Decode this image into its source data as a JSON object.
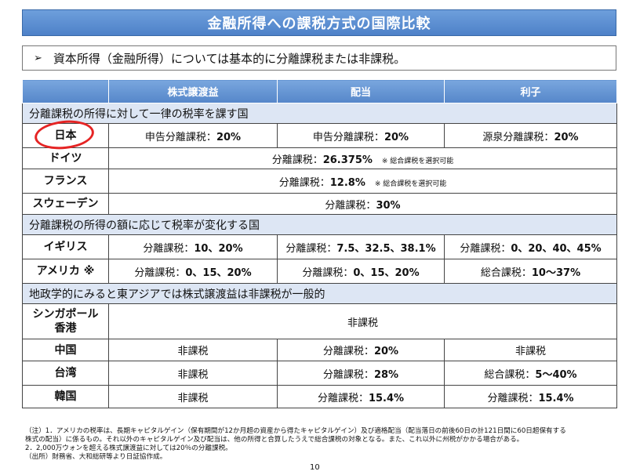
{
  "title": "金融所得への課税方式の国際比較",
  "summary": {
    "arrow": "➢",
    "text": "資本所得（金融所得）については基本的に分離課税または非課税。"
  },
  "table": {
    "headers": [
      "株式譲渡益",
      "配当",
      "利子"
    ],
    "sections": [
      {
        "label": "分離課税の所得に対して一律の税率を課す国",
        "rows": [
          {
            "country": "日本",
            "cells": [
              {
                "text": "申告分離課税：",
                "pct": "20%",
                "span": 1
              },
              {
                "text": "申告分離課税：",
                "pct": "20%",
                "span": 1
              },
              {
                "text": "源泉分離課税：",
                "pct": "20%",
                "span": 1
              }
            ]
          },
          {
            "country": "ドイツ",
            "cells": [
              {
                "text": "分離課税：",
                "pct": "26.375%",
                "note": "※ 総合課税を選択可能",
                "span": 3
              }
            ]
          },
          {
            "country": "フランス",
            "cells": [
              {
                "text": "分離課税：",
                "pct": "12.8%",
                "note": "※ 総合課税を選択可能",
                "span": 3
              }
            ]
          },
          {
            "country": "スウェーデン",
            "cells": [
              {
                "text": "分離課税：",
                "pct": "30%",
                "span": 3
              }
            ]
          }
        ]
      },
      {
        "label": "分離課税の所得の額に応じて税率が変化する国",
        "rows": [
          {
            "country": "イギリス",
            "cells": [
              {
                "text": "分離課税：",
                "pct": "10、20%",
                "span": 1
              },
              {
                "text": "分離課税：",
                "pct": "7.5、32.5、38.1%",
                "span": 1
              },
              {
                "text": "分離課税：",
                "pct": "0、20、40、45%",
                "span": 1
              }
            ]
          },
          {
            "country": "アメリカ ※",
            "cells": [
              {
                "text": "分離課税：",
                "pct": "0、15、20%",
                "span": 1
              },
              {
                "text": "分離課税：",
                "pct": "0、15、20%",
                "span": 1
              },
              {
                "text": "総合課税：",
                "pct": "10～37%",
                "span": 1
              }
            ]
          }
        ]
      },
      {
        "label": "地政学的にみると東アジアでは株式譲渡益は非課税が一般的",
        "rows": [
          {
            "country": "シンガポール\n香港",
            "cells": [
              {
                "text": "非課税",
                "pct": "",
                "span": 3
              }
            ]
          },
          {
            "country": "中国",
            "cells": [
              {
                "text": "非課税",
                "pct": "",
                "span": 1
              },
              {
                "text": "分離課税：",
                "pct": "20%",
                "span": 1
              },
              {
                "text": "非課税",
                "pct": "",
                "span": 1
              }
            ]
          },
          {
            "country": "台湾",
            "cells": [
              {
                "text": "非課税",
                "pct": "",
                "span": 1
              },
              {
                "text": "分離課税：",
                "pct": "28%",
                "span": 1
              },
              {
                "text": "総合課税：",
                "pct": "5～40%",
                "span": 1
              }
            ]
          },
          {
            "country": "韓国",
            "cells": [
              {
                "text": "非課税",
                "pct": "",
                "span": 1
              },
              {
                "text": "分離課税：",
                "pct": "15.4%",
                "span": 1
              },
              {
                "text": "分離課税：",
                "pct": "15.4%",
                "span": 1
              }
            ]
          }
        ]
      }
    ]
  },
  "footnotes": [
    "（注）1．アメリカの税率は、長期キャピタルゲイン（保有期間が12か月超の資産から得たキャピタルゲイン）及び適格配当（配当落日の前後60日の計121日間に60日超保有する",
    "株式の配当）に係るもの。それ以外のキャピタルゲイン及び配当は、他の所得と合算したうえで総合課税の対象となる。また、これ以外に州税がかかる場合がある。",
    "2．2,000万ウォンを超える株式譲渡益に対しては20％の分離課税。",
    "（出所）財務省、大和総研等より日証協作成。"
  ],
  "page_number": "10",
  "annotation_color": "#e52424"
}
